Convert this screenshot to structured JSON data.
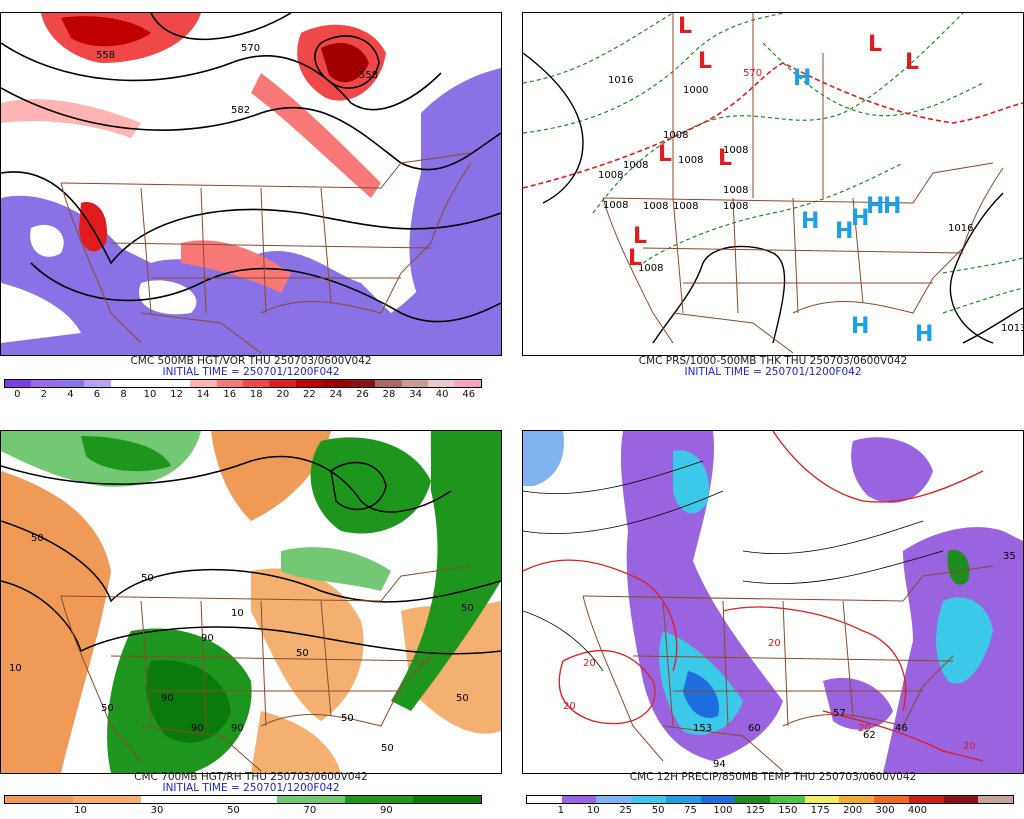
{
  "panels": {
    "p1": {
      "title": "CMC 500MB HGT/VOR THU 250703/0600V042",
      "subtitle": "INITIAL TIME = 250701/1200F042",
      "colorbar": [
        "#7a3fe0",
        "#9a6ae8",
        "#8a72e6",
        "#b7a2ef",
        "#ffffff",
        "#ffffff",
        "#ffffff",
        "#ffb4b4",
        "#f87878",
        "#f04848",
        "#e01c1c",
        "#c00000",
        "#a00000",
        "#8c1010",
        "#a86868",
        "#c89a9a",
        "#e8c8c8",
        "#f4a6c4"
      ],
      "ticks": [
        "0",
        "2",
        "4",
        "6",
        "8",
        "10",
        "12",
        "14",
        "16",
        "18",
        "20",
        "22",
        "24",
        "26",
        "28",
        "34",
        "40",
        "46"
      ],
      "contour_labels": [
        "558",
        "570",
        "582",
        "558"
      ]
    },
    "p2": {
      "title": "CMC PRS/1000-500MB THK THU 250703/0600V042",
      "subtitle": "INITIAL TIME = 250701/1200F042",
      "labels": [
        "1016",
        "1000",
        "1008",
        "1008",
        "1008",
        "1008",
        "1008",
        "1008",
        "1008",
        "1008",
        "1008",
        "1008",
        "1016",
        "1008",
        "570",
        "1013"
      ],
      "lows": [
        "L",
        "L",
        "L",
        "L",
        "L",
        "L",
        "L",
        "L"
      ],
      "highs": [
        "H",
        "H",
        "H",
        "H",
        "H",
        "H",
        "H",
        "H"
      ]
    },
    "p3": {
      "title": "CMC 700MB HGT/RH THU 250703/0600V042",
      "subtitle": "INITIAL TIME = 250701/1200F042",
      "colorbar": [
        "#f09a58",
        "#f4b070",
        "#ffffff",
        "#ffffff",
        "#74c874",
        "#1e961e",
        "#0a7a0a"
      ],
      "ticks": [
        "10",
        "30",
        "50",
        "70",
        "90"
      ],
      "labels": [
        "50",
        "10",
        "50",
        "90",
        "90",
        "50",
        "10",
        "50",
        "50",
        "50",
        "90",
        "90",
        "50",
        "50"
      ]
    },
    "p4": {
      "title": "CMC 12H PRECIP/850MB TEMP THU 250703/0600V042",
      "colorbar": [
        "#ffffff",
        "#9a64e0",
        "#7fb4f0",
        "#3cc8e8",
        "#1ea0e6",
        "#1e6ee0",
        "#1e8c1e",
        "#46c846",
        "#f0f05a",
        "#f0aa32",
        "#f06a1e",
        "#cc1e1e",
        "#8c1010",
        "#c8a0a0"
      ],
      "ticks": [
        "1",
        "10",
        "25",
        "50",
        "75",
        "100",
        "125",
        "150",
        "175",
        "200",
        "300",
        "400"
      ],
      "labels": [
        "20",
        "20",
        "20",
        "20",
        "20",
        "153",
        "94",
        "60",
        "57",
        "62",
        "46",
        "35"
      ]
    }
  }
}
